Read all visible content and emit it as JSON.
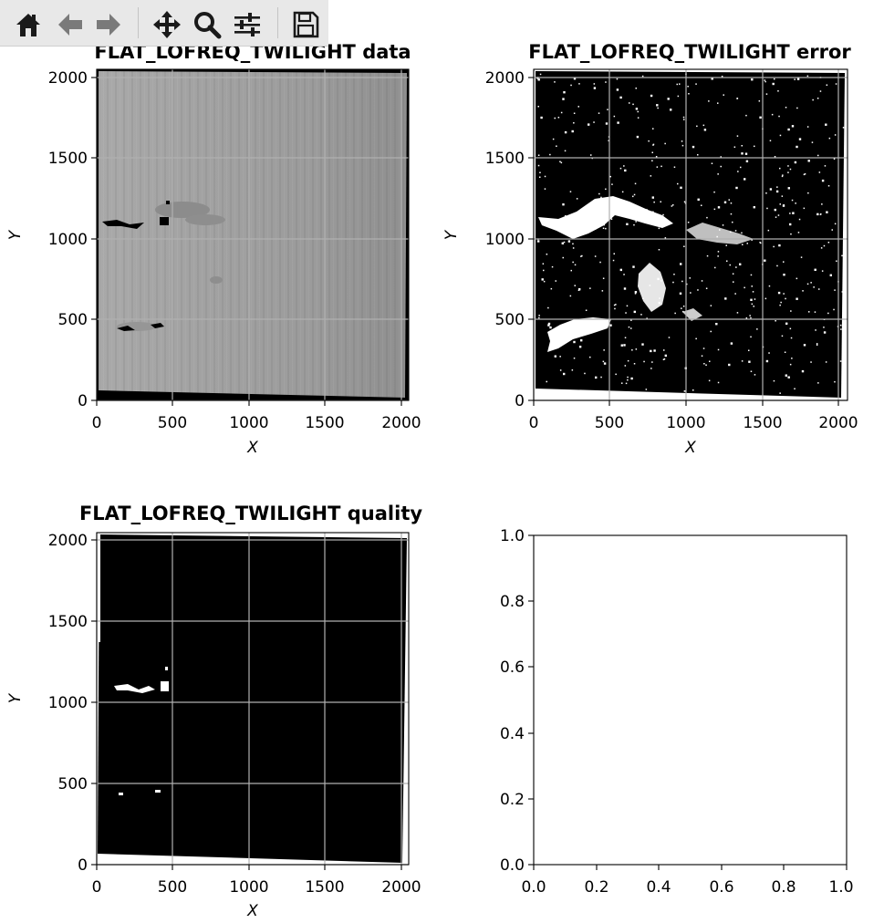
{
  "toolbar": {
    "buttons": [
      {
        "name": "home-button",
        "icon": "home-icon"
      },
      {
        "name": "back-button",
        "icon": "arrow-left-icon"
      },
      {
        "name": "forward-button",
        "icon": "arrow-right-icon"
      },
      {
        "name": "pan-button",
        "icon": "move-icon"
      },
      {
        "name": "zoom-button",
        "icon": "magnifier-icon"
      },
      {
        "name": "configure-subplots-button",
        "icon": "sliders-icon"
      },
      {
        "name": "save-button",
        "icon": "floppy-disk-icon"
      }
    ]
  },
  "chart_data": [
    {
      "type": "heatmap",
      "title": "FLAT_LOFREQ_TWILIGHT data",
      "xlabel": "X",
      "ylabel": "Y",
      "xlim": [
        0,
        2048
      ],
      "ylim": [
        0,
        2048
      ],
      "xticks": [
        0,
        500,
        1000,
        1500,
        2000
      ],
      "yticks": [
        0,
        500,
        1000,
        1500,
        2000
      ],
      "colormap": "gray",
      "grid": true
    },
    {
      "type": "heatmap",
      "title": "FLAT_LOFREQ_TWILIGHT error",
      "xlabel": "X",
      "ylabel": "Y",
      "xlim": [
        0,
        2048
      ],
      "ylim": [
        0,
        2048
      ],
      "xticks": [
        0,
        500,
        1000,
        1500,
        2000
      ],
      "yticks": [
        0,
        500,
        1000,
        1500,
        2000
      ],
      "colormap": "gray",
      "grid": true
    },
    {
      "type": "heatmap",
      "title": "FLAT_LOFREQ_TWILIGHT quality",
      "xlabel": "X",
      "ylabel": "Y",
      "xlim": [
        0,
        2048
      ],
      "ylim": [
        0,
        2048
      ],
      "xticks": [
        0,
        500,
        1000,
        1500,
        2000
      ],
      "yticks": [
        0,
        500,
        1000,
        1500,
        2000
      ],
      "colormap": "gray",
      "grid": true
    },
    {
      "type": "scatter",
      "title": "",
      "xlabel": "",
      "ylabel": "",
      "xlim": [
        0.0,
        1.0
      ],
      "ylim": [
        0.0,
        1.0
      ],
      "xticks": [
        "0.0",
        "0.2",
        "0.4",
        "0.6",
        "0.8",
        "1.0"
      ],
      "yticks": [
        "0.0",
        "0.2",
        "0.4",
        "0.6",
        "0.8",
        "1.0"
      ],
      "series": [],
      "grid": false
    }
  ]
}
